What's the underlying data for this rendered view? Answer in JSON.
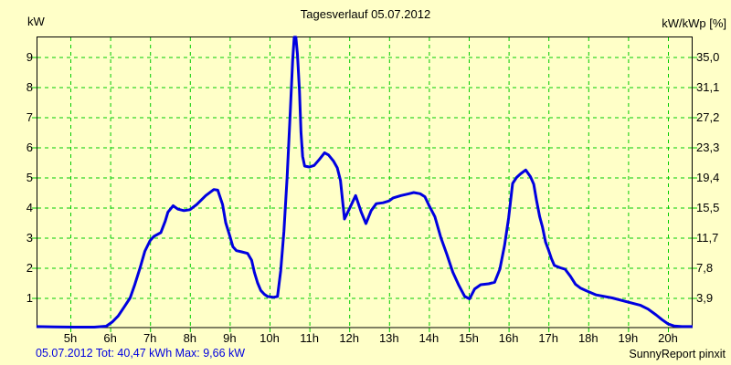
{
  "title": "Tagesverlauf 05.07.2012",
  "left_axis": {
    "label": "kW",
    "ticks": [
      "9",
      "8",
      "7",
      "6",
      "5",
      "4",
      "3",
      "2",
      "1"
    ]
  },
  "right_axis": {
    "label": "kW/kWp [%]",
    "ticks": [
      "35,0",
      "31,1",
      "27,2",
      "23,3",
      "19,4",
      "15,5",
      "11,7",
      "7,8",
      "3,9"
    ]
  },
  "x_axis": {
    "labels": [
      "5h",
      "6h",
      "7h",
      "8h",
      "9h",
      "10h",
      "11h",
      "12h",
      "13h",
      "14h",
      "15h",
      "16h",
      "17h",
      "18h",
      "19h",
      "20h"
    ]
  },
  "footer": {
    "summary": "05.07.2012 Tot: 40,47 kWh Max: 9,66 kW",
    "credit": "SunnyReport pinxit"
  },
  "colors": {
    "background": "#FFFFC8",
    "grid": "#00CC00",
    "frame": "#000000",
    "line": "#0000E0",
    "summary_text": "#0000E0",
    "text": "#000000"
  },
  "chart_data": {
    "type": "line",
    "title": "Tagesverlauf 05.07.2012",
    "date": "05.07.2012",
    "ylabel_left": "kW",
    "ylabel_right": "kW/kWp [%]",
    "total_kwh": "40,47",
    "max_kw": "9,66",
    "x_unit": "h",
    "x_range_hours": [
      4.15,
      20.62
    ],
    "y_range_kw": [
      0,
      9.68
    ],
    "x_ticks_hours": [
      5,
      6,
      7,
      8,
      9,
      10,
      11,
      12,
      13,
      14,
      15,
      16,
      17,
      18,
      19,
      20
    ],
    "y_ticks_kw": [
      1,
      2,
      3,
      4,
      5,
      6,
      7,
      8,
      9
    ],
    "y_ticks_percent": [
      "3,9",
      "7,8",
      "11,7",
      "15,5",
      "19,4",
      "23,3",
      "27,2",
      "31,1",
      "35,0"
    ],
    "grid": "dashed-green",
    "legend": "none",
    "points": [
      [
        4.15,
        0.05
      ],
      [
        4.6,
        0.04
      ],
      [
        5.1,
        0.03
      ],
      [
        5.6,
        0.03
      ],
      [
        5.9,
        0.06
      ],
      [
        6.05,
        0.2
      ],
      [
        6.2,
        0.4
      ],
      [
        6.35,
        0.7
      ],
      [
        6.5,
        1.0
      ],
      [
        6.62,
        1.45
      ],
      [
        6.75,
        2.0
      ],
      [
        6.87,
        2.55
      ],
      [
        7.0,
        2.9
      ],
      [
        7.1,
        3.05
      ],
      [
        7.27,
        3.17
      ],
      [
        7.38,
        3.55
      ],
      [
        7.45,
        3.85
      ],
      [
        7.58,
        4.06
      ],
      [
        7.7,
        3.95
      ],
      [
        7.85,
        3.9
      ],
      [
        8.0,
        3.93
      ],
      [
        8.17,
        4.1
      ],
      [
        8.4,
        4.4
      ],
      [
        8.6,
        4.6
      ],
      [
        8.7,
        4.58
      ],
      [
        8.82,
        4.1
      ],
      [
        8.9,
        3.5
      ],
      [
        9.0,
        3.07
      ],
      [
        9.08,
        2.7
      ],
      [
        9.17,
        2.57
      ],
      [
        9.3,
        2.53
      ],
      [
        9.45,
        2.48
      ],
      [
        9.55,
        2.25
      ],
      [
        9.62,
        1.85
      ],
      [
        9.7,
        1.5
      ],
      [
        9.78,
        1.25
      ],
      [
        9.87,
        1.12
      ],
      [
        9.95,
        1.05
      ],
      [
        10.1,
        1.02
      ],
      [
        10.2,
        1.05
      ],
      [
        10.28,
        1.9
      ],
      [
        10.36,
        3.2
      ],
      [
        10.44,
        5.0
      ],
      [
        10.52,
        7.2
      ],
      [
        10.58,
        8.9
      ],
      [
        10.62,
        9.66
      ],
      [
        10.66,
        9.66
      ],
      [
        10.7,
        9.1
      ],
      [
        10.75,
        7.9
      ],
      [
        10.79,
        6.5
      ],
      [
        10.83,
        5.7
      ],
      [
        10.88,
        5.38
      ],
      [
        11.0,
        5.35
      ],
      [
        11.12,
        5.4
      ],
      [
        11.25,
        5.6
      ],
      [
        11.38,
        5.82
      ],
      [
        11.48,
        5.75
      ],
      [
        11.6,
        5.55
      ],
      [
        11.7,
        5.32
      ],
      [
        11.78,
        4.9
      ],
      [
        11.88,
        3.62
      ],
      [
        12.0,
        3.95
      ],
      [
        12.16,
        4.4
      ],
      [
        12.3,
        3.85
      ],
      [
        12.42,
        3.47
      ],
      [
        12.55,
        3.9
      ],
      [
        12.68,
        4.13
      ],
      [
        12.85,
        4.16
      ],
      [
        13.0,
        4.22
      ],
      [
        13.1,
        4.32
      ],
      [
        13.3,
        4.4
      ],
      [
        13.5,
        4.46
      ],
      [
        13.62,
        4.5
      ],
      [
        13.78,
        4.46
      ],
      [
        13.9,
        4.36
      ],
      [
        14.0,
        4.08
      ],
      [
        14.15,
        3.7
      ],
      [
        14.3,
        3.0
      ],
      [
        14.45,
        2.45
      ],
      [
        14.6,
        1.85
      ],
      [
        14.75,
        1.42
      ],
      [
        14.9,
        1.05
      ],
      [
        15.02,
        0.97
      ],
      [
        15.15,
        1.3
      ],
      [
        15.3,
        1.44
      ],
      [
        15.5,
        1.47
      ],
      [
        15.65,
        1.52
      ],
      [
        15.78,
        1.95
      ],
      [
        15.9,
        2.75
      ],
      [
        16.0,
        3.65
      ],
      [
        16.1,
        4.8
      ],
      [
        16.2,
        5.0
      ],
      [
        16.3,
        5.12
      ],
      [
        16.43,
        5.25
      ],
      [
        16.55,
        5.02
      ],
      [
        16.63,
        4.78
      ],
      [
        16.7,
        4.25
      ],
      [
        16.78,
        3.7
      ],
      [
        16.85,
        3.35
      ],
      [
        16.93,
        2.85
      ],
      [
        17.0,
        2.6
      ],
      [
        17.07,
        2.32
      ],
      [
        17.15,
        2.08
      ],
      [
        17.3,
        2.0
      ],
      [
        17.42,
        1.95
      ],
      [
        17.55,
        1.72
      ],
      [
        17.68,
        1.45
      ],
      [
        17.8,
        1.33
      ],
      [
        17.95,
        1.24
      ],
      [
        18.2,
        1.1
      ],
      [
        18.6,
        1.0
      ],
      [
        19.0,
        0.86
      ],
      [
        19.3,
        0.76
      ],
      [
        19.5,
        0.63
      ],
      [
        19.7,
        0.44
      ],
      [
        19.85,
        0.28
      ],
      [
        20.0,
        0.14
      ],
      [
        20.15,
        0.07
      ],
      [
        20.35,
        0.05
      ],
      [
        20.62,
        0.05
      ]
    ]
  }
}
